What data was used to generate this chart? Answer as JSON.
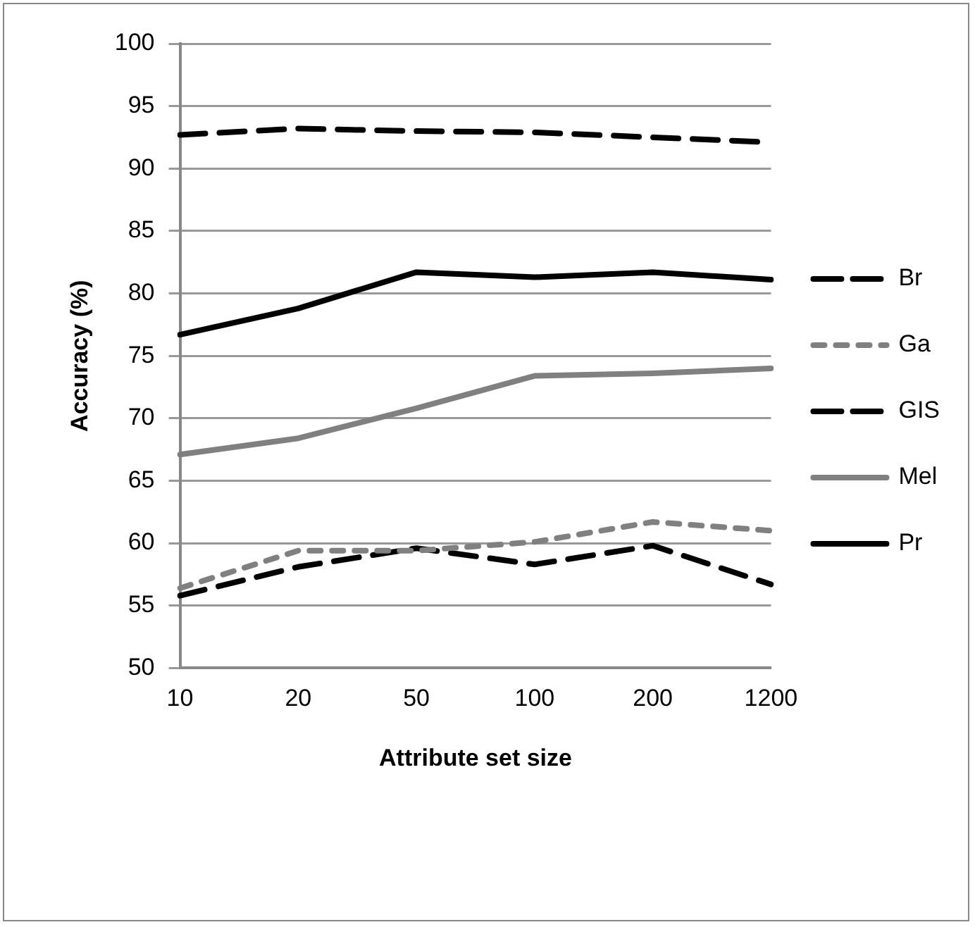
{
  "chart_data": {
    "type": "line",
    "xlabel": "Attribute set size",
    "ylabel": "Accuracy (%)",
    "categories": [
      "10",
      "20",
      "50",
      "100",
      "200",
      "1200"
    ],
    "series": [
      {
        "name": "Br",
        "color": "#000000",
        "line_style": "dashed",
        "values": [
          92.7,
          93.2,
          93.0,
          92.9,
          92.5,
          92.1
        ]
      },
      {
        "name": "Ga",
        "color": "#808080",
        "line_style": "dotted",
        "values": [
          56.4,
          59.4,
          59.4,
          60.1,
          61.7,
          61.0
        ]
      },
      {
        "name": "GIS",
        "color": "#000000",
        "line_style": "dashed",
        "values": [
          55.8,
          58.1,
          59.6,
          58.3,
          59.8,
          56.7
        ]
      },
      {
        "name": "Mel",
        "color": "#808080",
        "line_style": "solid",
        "values": [
          67.1,
          68.4,
          70.8,
          73.4,
          73.6,
          74.0
        ]
      },
      {
        "name": "Pr",
        "color": "#000000",
        "line_style": "solid",
        "values": [
          76.7,
          78.8,
          81.7,
          81.3,
          81.7,
          81.1
        ]
      }
    ],
    "ylim": [
      50,
      100
    ],
    "yticks": [
      50,
      55,
      60,
      65,
      70,
      75,
      80,
      85,
      90,
      95,
      100
    ],
    "grid": "y",
    "legend": "right",
    "marker": "none"
  }
}
